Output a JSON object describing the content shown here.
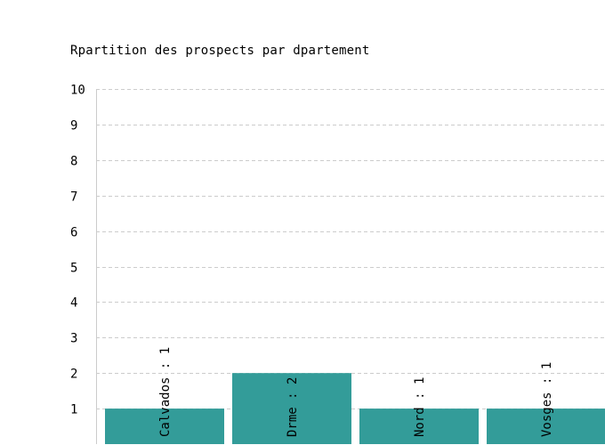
{
  "chart_data": {
    "type": "bar",
    "title": "Rpartition des prospects par dpartement",
    "categories": [
      "Calvados",
      "Drme",
      "Nord",
      "Vosges"
    ],
    "values": [
      1,
      2,
      1,
      1
    ],
    "bar_labels": [
      "Calvados : 1",
      "Drme : 2",
      "Nord : 1",
      "Vosges : 1"
    ],
    "ylim": [
      0,
      10
    ],
    "yticks": [
      "1",
      "2",
      "3",
      "4",
      "5",
      "6",
      "7",
      "8",
      "9",
      "10"
    ],
    "grid": true,
    "legend": "none",
    "xlabel": "",
    "ylabel": ""
  },
  "colors": {
    "bar": "#339c99",
    "grid": "#cccccc",
    "axis": "#cccccc",
    "text": "#000000"
  }
}
